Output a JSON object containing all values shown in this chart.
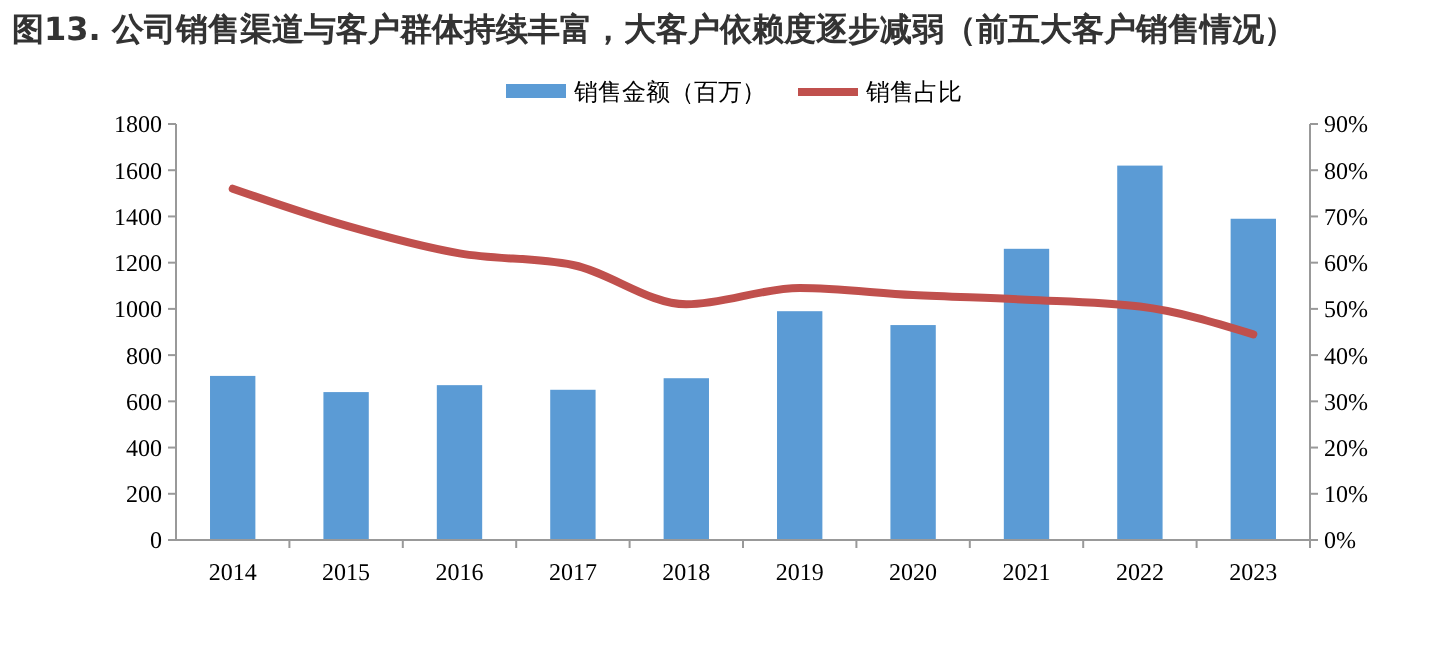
{
  "chart_data": {
    "type": "bar",
    "title": "图13. 公司销售渠道与客户群体持续丰富，大客户依赖度逐步减弱（前五大客户销售情况）",
    "categories": [
      "2014",
      "2015",
      "2016",
      "2017",
      "2018",
      "2019",
      "2020",
      "2021",
      "2022",
      "2023"
    ],
    "series": [
      {
        "name": "销售金额（百万）",
        "color": "#5b9bd5",
        "values": [
          710,
          640,
          670,
          650,
          700,
          990,
          930,
          1260,
          1620,
          1390
        ]
      },
      {
        "name": "销售占比",
        "type": "line",
        "axis": "y2",
        "color": "#c0504d",
        "values": [
          76,
          68,
          62,
          59.5,
          51,
          54.5,
          53,
          52,
          50.5,
          44.5
        ]
      }
    ],
    "ylim": [
      0,
      1800
    ],
    "yticks": [
      0,
      200,
      400,
      600,
      800,
      1000,
      1200,
      1400,
      1600,
      1800
    ],
    "y2lim": [
      0,
      90
    ],
    "y2ticks": [
      {
        "value": 0,
        "label": "0%"
      },
      {
        "value": 10,
        "label": "10%"
      },
      {
        "value": 20,
        "label": "20%"
      },
      {
        "value": 30,
        "label": "30%"
      },
      {
        "value": 40,
        "label": "40%"
      },
      {
        "value": 50,
        "label": "50%"
      },
      {
        "value": 60,
        "label": "60%"
      },
      {
        "value": 70,
        "label": "70%"
      },
      {
        "value": 80,
        "label": "80%"
      },
      {
        "value": 90,
        "label": "90%"
      }
    ],
    "legend": "top",
    "grid": false,
    "marker": "none"
  }
}
